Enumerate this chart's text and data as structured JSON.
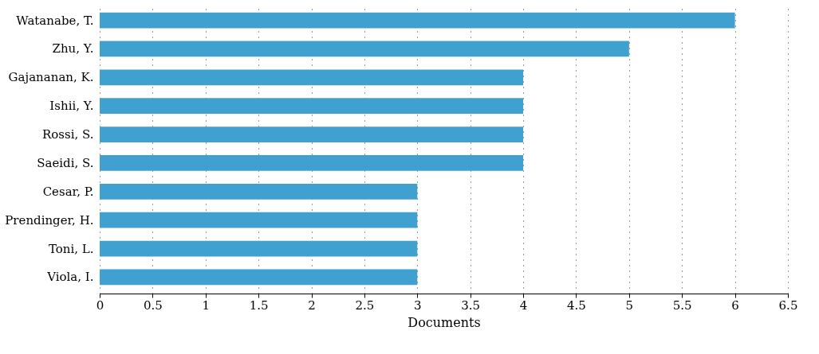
{
  "chart_data": {
    "type": "bar",
    "orientation": "horizontal",
    "xlabel": "Documents",
    "categories": [
      "Watanabe, T.",
      "Zhu, Y.",
      "Gajananan, K.",
      "Ishii, Y.",
      "Rossi, S.",
      "Saeidi, S.",
      "Cesar, P.",
      "Prendinger, H.",
      "Toni, L.",
      "Viola, I."
    ],
    "values": [
      6,
      5,
      4,
      4,
      4,
      4,
      3,
      3,
      3,
      3
    ],
    "color": "#40a0d0",
    "xlim": [
      0,
      6.5
    ],
    "xticks": [
      0,
      0.5,
      1,
      1.5,
      2,
      2.5,
      3,
      3.5,
      4,
      4.5,
      5,
      5.5,
      6,
      6.5
    ],
    "grid": "x"
  }
}
